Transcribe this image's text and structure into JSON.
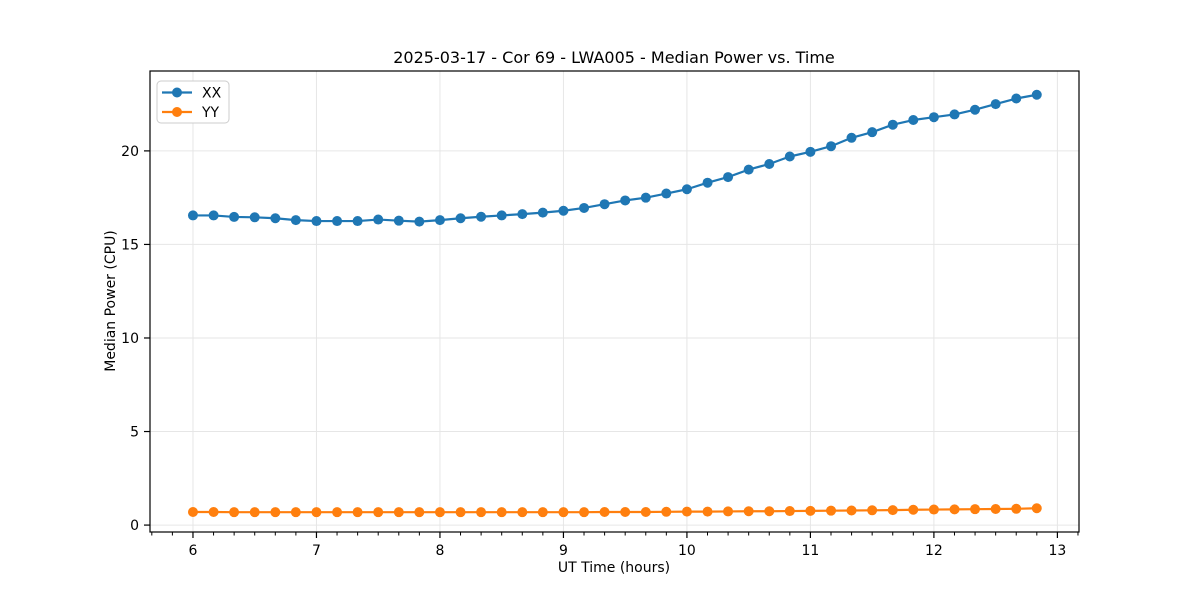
{
  "chart_data": {
    "type": "line",
    "title": "2025-03-17 - Cor 69 - LWA005 - Median Power vs. Time",
    "xlabel": "UT Time (hours)",
    "ylabel": "Median Power (CPU)",
    "xlim": [
      5.652,
      13.175
    ],
    "ylim": [
      -0.37,
      24.27
    ],
    "xticks": [
      6,
      7,
      8,
      9,
      10,
      11,
      12,
      13
    ],
    "yticks": [
      0,
      5,
      10,
      15,
      20
    ],
    "minor_xtick_step": 0.1667,
    "grid": true,
    "grid_color": "#e6e6e6",
    "legend_position": "upper left",
    "x": [
      6.0,
      6.167,
      6.333,
      6.5,
      6.667,
      6.833,
      7.0,
      7.167,
      7.333,
      7.5,
      7.667,
      7.833,
      8.0,
      8.167,
      8.333,
      8.5,
      8.667,
      8.833,
      9.0,
      9.167,
      9.333,
      9.5,
      9.667,
      9.833,
      10.0,
      10.167,
      10.333,
      10.5,
      10.667,
      10.833,
      11.0,
      11.167,
      11.333,
      11.5,
      11.667,
      11.833,
      12.0,
      12.167,
      12.333,
      12.5,
      12.667,
      12.833
    ],
    "series": [
      {
        "name": "XX",
        "color": "#1f77b4",
        "values": [
          16.55,
          16.55,
          16.47,
          16.45,
          16.4,
          16.3,
          16.25,
          16.25,
          16.25,
          16.33,
          16.27,
          16.22,
          16.3,
          16.4,
          16.48,
          16.55,
          16.62,
          16.7,
          16.8,
          16.95,
          17.15,
          17.35,
          17.5,
          17.72,
          17.95,
          18.3,
          18.6,
          19.0,
          19.3,
          19.7,
          19.95,
          20.25,
          20.7,
          21.0,
          21.4,
          21.65,
          21.8,
          21.95,
          22.2,
          22.5,
          22.8,
          23.0
        ]
      },
      {
        "name": "YY",
        "color": "#ff7f0e",
        "values": [
          0.7,
          0.7,
          0.69,
          0.69,
          0.69,
          0.69,
          0.69,
          0.69,
          0.69,
          0.69,
          0.69,
          0.69,
          0.69,
          0.69,
          0.69,
          0.69,
          0.69,
          0.69,
          0.69,
          0.69,
          0.7,
          0.7,
          0.7,
          0.71,
          0.72,
          0.72,
          0.73,
          0.74,
          0.74,
          0.75,
          0.76,
          0.77,
          0.78,
          0.79,
          0.8,
          0.82,
          0.83,
          0.84,
          0.85,
          0.86,
          0.87,
          0.9
        ]
      }
    ]
  }
}
